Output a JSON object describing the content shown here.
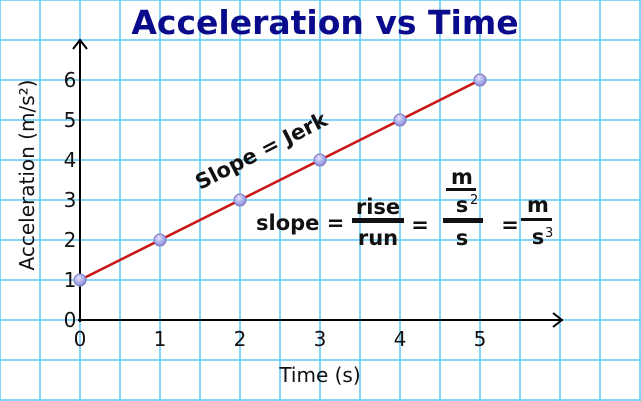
{
  "chart_data": {
    "type": "line",
    "title": "Acceleration vs Time",
    "xlabel": "Time (s)",
    "ylabel": "Acceleration (m/s²)",
    "xlim": [
      0,
      5
    ],
    "ylim": [
      0,
      6
    ],
    "x_ticks": [
      "0",
      "1",
      "2",
      "3",
      "4",
      "5"
    ],
    "y_ticks": [
      "0",
      "1",
      "2",
      "3",
      "4",
      "5",
      "6"
    ],
    "grid": true,
    "x": [
      0,
      1,
      2,
      3,
      4,
      5
    ],
    "y": [
      1,
      2,
      3,
      4,
      5,
      6
    ],
    "line_color": "#cc1111",
    "marker_color": "#8a8ad8",
    "grid_color": "#5ec8f5",
    "title_color": "#0a0a8c",
    "annotations": {
      "slope_label": "Slope = Jerk",
      "eq_slope": "slope =",
      "eq_rise": "rise",
      "eq_run": "run",
      "eq_equals": "=",
      "eq_m": "m",
      "eq_s": "s",
      "eq_sup2": "2",
      "eq_sup3": "3"
    }
  }
}
